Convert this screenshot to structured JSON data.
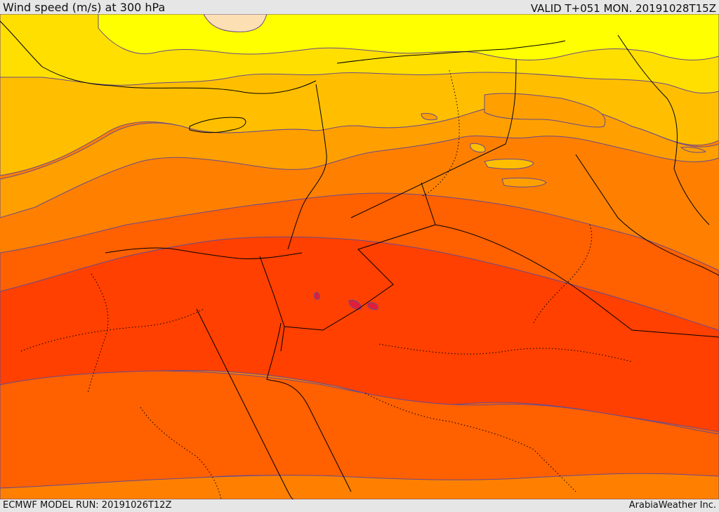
{
  "header": {
    "title": "Wind speed (m/s) at 300 hPa",
    "valid": "VALID T+051 MON. 20191028T15Z"
  },
  "footer": {
    "model_run": "ECMWF MODEL RUN: 20191026T12Z",
    "credit": "ArabiaWeather Inc."
  },
  "map": {
    "field": "wind-speed-300hPa",
    "colors": {
      "light_peach": "#fce0b4",
      "yellow": "#ffff00",
      "gold": "#ffdf00",
      "amber": "#ffbf00",
      "light_orange": "#ffa000",
      "orange": "#ff8000",
      "dark_orange": "#ff6000",
      "red_orange": "#ff4000",
      "red": "#e01e3c",
      "contour_line": "#6a4a8a",
      "border_line": "#000000"
    }
  }
}
